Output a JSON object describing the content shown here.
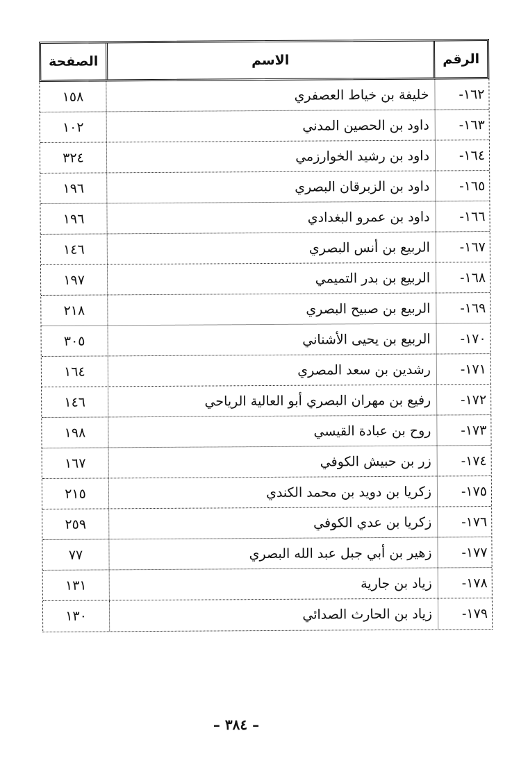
{
  "header": {
    "number": "الرقم",
    "name": "الاسم",
    "page": "الصفحة"
  },
  "rows": [
    {
      "number": "١٦٢-",
      "name": "خليفة بن خياط العصفري",
      "page": "١٥٨"
    },
    {
      "number": "١٦٣-",
      "name": "داود بن الحصين المدني",
      "page": "١٠٢"
    },
    {
      "number": "١٦٤-",
      "name": "داود بن رشيد الخوارزمي",
      "page": "٣٢٤"
    },
    {
      "number": "١٦٥-",
      "name": "داود بن الزبرقان البصري",
      "page": "١٩٦"
    },
    {
      "number": "١٦٦-",
      "name": "داود بن عمرو البغدادي",
      "page": "١٩٦"
    },
    {
      "number": "١٦٧-",
      "name": "الربيع بن أنس البصري",
      "page": "١٤٦"
    },
    {
      "number": "١٦٨-",
      "name": "الربيع بن بدر التميمي",
      "page": "١٩٧"
    },
    {
      "number": "١٦٩-",
      "name": "الربيع بن صبيح البصري",
      "page": "٢١٨"
    },
    {
      "number": "١٧٠-",
      "name": "الربيع بن يحيى الأشناني",
      "page": "٣٠٥"
    },
    {
      "number": "١٧١-",
      "name": "رشدين بن سعد المصري",
      "page": "١٦٤"
    },
    {
      "number": "١٧٢-",
      "name": "رفيع بن مهران البصري أبو العالية الرياحي",
      "page": "١٤٦"
    },
    {
      "number": "١٧٣-",
      "name": "روح بن عبادة القيسي",
      "page": "١٩٨"
    },
    {
      "number": "١٧٤-",
      "name": "زر بن حبيش الكوفي",
      "page": "١٦٧"
    },
    {
      "number": "١٧٥-",
      "name": "زكريا بن دويد بن محمد الكندي",
      "page": "٢١٥"
    },
    {
      "number": "١٧٦-",
      "name": "زكريا بن عدي الكوفي",
      "page": "٢٥٩"
    },
    {
      "number": "١٧٧-",
      "name": "زهير بن أبي جبل عبد الله البصري",
      "page": "٧٧"
    },
    {
      "number": "١٧٨-",
      "name": "زياد بن جارية",
      "page": "١٣١"
    },
    {
      "number": "١٧٩-",
      "name": "زياد بن الحارث الصدائي",
      "page": "١٣٠"
    }
  ],
  "footer": {
    "page_number": "– ٣٨٤ –"
  }
}
